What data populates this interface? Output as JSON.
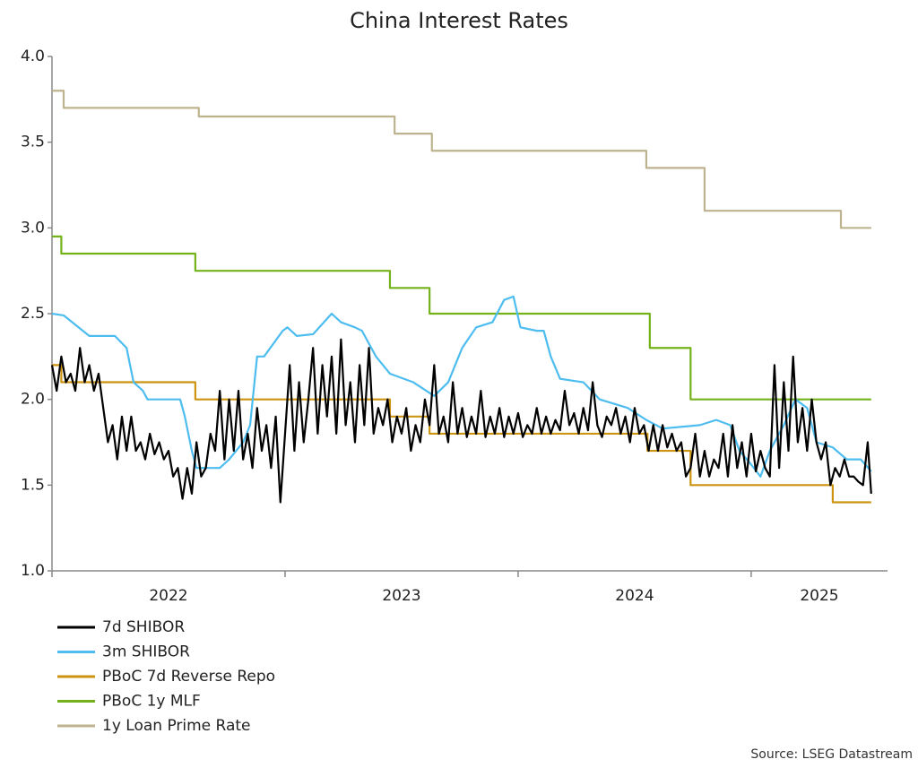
{
  "chart_data": {
    "type": "line",
    "title": "China Interest Rates",
    "source": "Source: LSEG Datastream",
    "xlim": [
      2022,
      2025.585
    ],
    "xticks": [
      2022,
      2023,
      2024,
      2025
    ],
    "ylim": [
      1,
      4
    ],
    "yticks": [
      {
        "value": 1,
        "label": "1.0"
      },
      1.5,
      {
        "value": 2,
        "label": "2.0"
      },
      2.5,
      {
        "value": 3,
        "label": "3.0"
      },
      3.5,
      {
        "value": 4,
        "label": "4.0"
      }
    ],
    "grid": false,
    "legend": "bottom-left",
    "series": [
      {
        "name": "7d SHIBOR",
        "color": "#000000",
        "x": [
          2022.0,
          2022.02,
          2022.04,
          2022.06,
          2022.08,
          2022.1,
          2022.12,
          2022.14,
          2022.16,
          2022.18,
          2022.2,
          2022.22,
          2022.24,
          2022.26,
          2022.28,
          2022.3,
          2022.32,
          2022.34,
          2022.36,
          2022.38,
          2022.4,
          2022.42,
          2022.44,
          2022.46,
          2022.48,
          2022.5,
          2022.52,
          2022.54,
          2022.56,
          2022.58,
          2022.6,
          2022.62,
          2022.64,
          2022.66,
          2022.68,
          2022.7,
          2022.72,
          2022.74,
          2022.76,
          2022.78,
          2022.8,
          2022.82,
          2022.84,
          2022.86,
          2022.88,
          2022.9,
          2022.92,
          2022.94,
          2022.96,
          2022.98,
          2023.0,
          2023.02,
          2023.04,
          2023.06,
          2023.08,
          2023.1,
          2023.12,
          2023.14,
          2023.16,
          2023.18,
          2023.2,
          2023.22,
          2023.24,
          2023.26,
          2023.28,
          2023.3,
          2023.32,
          2023.34,
          2023.36,
          2023.38,
          2023.4,
          2023.42,
          2023.44,
          2023.46,
          2023.48,
          2023.5,
          2023.52,
          2023.54,
          2023.56,
          2023.58,
          2023.6,
          2023.62,
          2023.64,
          2023.66,
          2023.68,
          2023.7,
          2023.72,
          2023.74,
          2023.76,
          2023.78,
          2023.8,
          2023.82,
          2023.84,
          2023.86,
          2023.88,
          2023.9,
          2023.92,
          2023.94,
          2023.96,
          2023.98,
          2024.0,
          2024.02,
          2024.04,
          2024.06,
          2024.08,
          2024.1,
          2024.12,
          2024.14,
          2024.16,
          2024.18,
          2024.2,
          2024.22,
          2024.24,
          2024.26,
          2024.28,
          2024.3,
          2024.32,
          2024.34,
          2024.36,
          2024.38,
          2024.4,
          2024.42,
          2024.44,
          2024.46,
          2024.48,
          2024.5,
          2024.52,
          2024.54,
          2024.56,
          2024.58,
          2024.6,
          2024.62,
          2024.64,
          2024.66,
          2024.68,
          2024.7,
          2024.72,
          2024.74,
          2024.76,
          2024.78,
          2024.8,
          2024.82,
          2024.84,
          2024.86,
          2024.88,
          2024.9,
          2024.92,
          2024.94,
          2024.96,
          2024.98,
          2025.0,
          2025.02,
          2025.04,
          2025.06,
          2025.08,
          2025.1,
          2025.12,
          2025.14,
          2025.16,
          2025.18,
          2025.2,
          2025.22,
          2025.24,
          2025.26,
          2025.28,
          2025.3,
          2025.32,
          2025.34,
          2025.36,
          2025.38,
          2025.4,
          2025.42,
          2025.44,
          2025.46,
          2025.48,
          2025.5,
          2025.515
        ],
        "values": [
          2.2,
          2.05,
          2.25,
          2.1,
          2.15,
          2.05,
          2.3,
          2.1,
          2.2,
          2.05,
          2.15,
          1.95,
          1.75,
          1.85,
          1.65,
          1.9,
          1.7,
          1.9,
          1.7,
          1.75,
          1.65,
          1.8,
          1.68,
          1.75,
          1.65,
          1.7,
          1.55,
          1.6,
          1.42,
          1.6,
          1.45,
          1.75,
          1.55,
          1.6,
          1.8,
          1.7,
          2.05,
          1.65,
          2.0,
          1.7,
          2.05,
          1.65,
          1.8,
          1.6,
          1.95,
          1.7,
          1.85,
          1.6,
          1.9,
          1.4,
          1.8,
          2.2,
          1.7,
          2.1,
          1.75,
          2.0,
          2.3,
          1.8,
          2.2,
          1.9,
          2.25,
          1.8,
          2.35,
          1.85,
          2.1,
          1.75,
          2.2,
          1.85,
          2.3,
          1.8,
          1.95,
          1.85,
          2.0,
          1.75,
          1.9,
          1.8,
          1.95,
          1.7,
          1.85,
          1.75,
          2.0,
          1.85,
          2.2,
          1.8,
          1.9,
          1.75,
          2.1,
          1.8,
          1.95,
          1.78,
          1.9,
          1.8,
          2.05,
          1.78,
          1.9,
          1.8,
          1.95,
          1.78,
          1.9,
          1.8,
          1.92,
          1.78,
          1.85,
          1.8,
          1.95,
          1.8,
          1.9,
          1.8,
          1.88,
          1.82,
          2.05,
          1.85,
          1.92,
          1.8,
          1.95,
          1.82,
          2.1,
          1.85,
          1.78,
          1.9,
          1.85,
          1.95,
          1.8,
          1.9,
          1.75,
          1.95,
          1.8,
          1.85,
          1.7,
          1.85,
          1.7,
          1.85,
          1.72,
          1.8,
          1.7,
          1.75,
          1.55,
          1.6,
          1.8,
          1.55,
          1.7,
          1.55,
          1.65,
          1.6,
          1.8,
          1.55,
          1.85,
          1.6,
          1.75,
          1.55,
          1.8,
          1.58,
          1.7,
          1.6,
          1.55,
          2.2,
          1.6,
          2.1,
          1.7,
          2.25,
          1.75,
          1.95,
          1.7,
          2.0,
          1.75,
          1.65,
          1.75,
          1.5,
          1.6,
          1.55,
          1.65,
          1.55,
          1.55,
          1.52,
          1.5,
          1.75,
          1.45
        ]
      },
      {
        "name": "3m SHIBOR",
        "color": "#4dbdf0",
        "x": [
          2022.0,
          2022.05,
          2022.16,
          2022.27,
          2022.32,
          2022.35,
          2022.39,
          2022.41,
          2022.55,
          2022.57,
          2022.6,
          2022.62,
          2022.72,
          2022.76,
          2022.82,
          2022.85,
          2022.88,
          2022.91,
          2022.99,
          2023.01,
          2023.05,
          2023.12,
          2023.2,
          2023.24,
          2023.3,
          2023.33,
          2023.39,
          2023.45,
          2023.55,
          2023.64,
          2023.7,
          2023.76,
          2023.82,
          2023.89,
          2023.94,
          2023.98,
          2024.01,
          2024.08,
          2024.11,
          2024.14,
          2024.18,
          2024.28,
          2024.35,
          2024.47,
          2024.55,
          2024.62,
          2024.78,
          2024.85,
          2024.91,
          2024.95,
          2025.0,
          2025.04,
          2025.08,
          2025.14,
          2025.19,
          2025.24,
          2025.28,
          2025.35,
          2025.41,
          2025.47,
          2025.515
        ],
        "values": [
          2.5,
          2.49,
          2.37,
          2.37,
          2.3,
          2.1,
          2.05,
          2.0,
          2.0,
          1.9,
          1.7,
          1.6,
          1.6,
          1.65,
          1.75,
          1.85,
          2.25,
          2.25,
          2.4,
          2.42,
          2.37,
          2.38,
          2.5,
          2.45,
          2.42,
          2.4,
          2.25,
          2.15,
          2.1,
          2.02,
          2.1,
          2.3,
          2.42,
          2.45,
          2.58,
          2.6,
          2.42,
          2.4,
          2.4,
          2.25,
          2.12,
          2.1,
          2.0,
          1.95,
          1.88,
          1.83,
          1.85,
          1.88,
          1.85,
          1.7,
          1.62,
          1.55,
          1.7,
          1.85,
          2.0,
          1.95,
          1.75,
          1.72,
          1.65,
          1.65,
          1.58
        ]
      },
      {
        "name": "PBoC 7d Reverse Repo",
        "color": "#cc9410",
        "x": [
          2022.0,
          2022.04,
          2022.04,
          2022.615,
          2022.615,
          2023.45,
          2023.45,
          2023.62,
          2023.62,
          2024.555,
          2024.555,
          2024.74,
          2024.74,
          2025.35,
          2025.35,
          2025.515
        ],
        "values": [
          2.2,
          2.2,
          2.1,
          2.1,
          2.0,
          2.0,
          1.9,
          1.9,
          1.8,
          1.8,
          1.7,
          1.7,
          1.5,
          1.5,
          1.4,
          1.4
        ]
      },
      {
        "name": "PBoC 1y MLF",
        "color": "#74b21c",
        "x": [
          2022.0,
          2022.04,
          2022.04,
          2022.615,
          2022.615,
          2023.45,
          2023.45,
          2023.62,
          2023.62,
          2024.565,
          2024.565,
          2024.74,
          2024.74,
          2025.515
        ],
        "values": [
          2.95,
          2.95,
          2.85,
          2.85,
          2.75,
          2.75,
          2.65,
          2.65,
          2.5,
          2.5,
          2.3,
          2.3,
          2.0,
          2.0
        ]
      },
      {
        "name": "1y Loan Prime Rate",
        "color": "#bdb38e",
        "x": [
          2022.0,
          2022.05,
          2022.05,
          2022.63,
          2022.63,
          2023.47,
          2023.47,
          2023.63,
          2023.63,
          2024.55,
          2024.55,
          2024.8,
          2024.8,
          2025.385,
          2025.385,
          2025.515
        ],
        "values": [
          3.8,
          3.8,
          3.7,
          3.7,
          3.65,
          3.65,
          3.55,
          3.55,
          3.45,
          3.45,
          3.35,
          3.35,
          3.1,
          3.1,
          3.0,
          3.0
        ]
      }
    ]
  }
}
